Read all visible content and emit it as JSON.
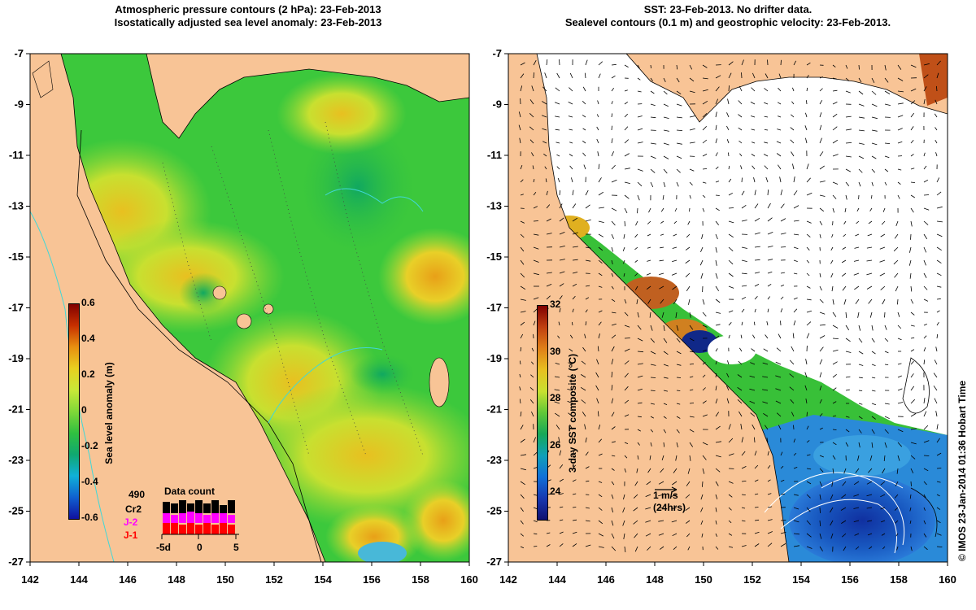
{
  "left_panel": {
    "title_line1": "Atmospheric pressure contours (2 hPa): 23-Feb-2013",
    "title_line2": "Isostatically adjusted sea level anomaly: 23-Feb-2013",
    "colorbar": {
      "label": "Sea level anomaly (m)",
      "ticks": [
        "0.6",
        "0.4",
        "0.2",
        "0",
        "-0.2",
        "-0.4",
        "-0.6"
      ]
    },
    "data_count": {
      "title": "Data count",
      "total": "490",
      "satellites": [
        "Cr2",
        "J-2",
        "J-1"
      ],
      "satellite_colors": [
        "#000000",
        "#ff00ff",
        "#ff0000"
      ],
      "axis_ticks": [
        "-5d",
        "0",
        "5"
      ]
    }
  },
  "right_panel": {
    "title_line1": "SST: 23-Feb-2013. No drifter data.",
    "title_line2": "Sealevel contours (0.1 m) and geostrophic velocity: 23-Feb-2013.",
    "colorbar": {
      "label": "3-day SST composite (°C)",
      "ticks": [
        "32",
        "30",
        "28",
        "26",
        "24"
      ]
    },
    "velocity_legend": {
      "speed": "1 m/s",
      "note": "(24hrs)"
    }
  },
  "axes": {
    "y_ticks": [
      "-7",
      "-9",
      "-11",
      "-13",
      "-15",
      "-17",
      "-19",
      "-21",
      "-23",
      "-25",
      "-27"
    ],
    "x_ticks": [
      "142",
      "144",
      "146",
      "148",
      "150",
      "152",
      "154",
      "156",
      "158",
      "160"
    ]
  },
  "credit": "© IMOS 23-Jan-2014 01:36 Hobart Time",
  "colors": {
    "land": "#f8c496",
    "ocean_green": "#3cc83c",
    "ocean_light": "#a0e040",
    "sst_blue": "#2a7ad8",
    "sst_deep": "#1538a0"
  }
}
